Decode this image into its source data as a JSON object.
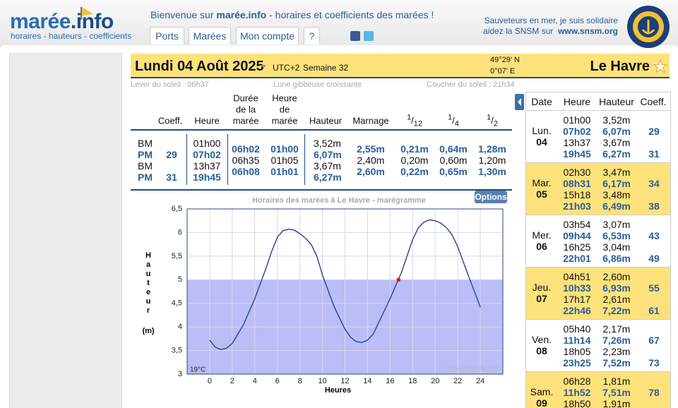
{
  "logo": {
    "brand": "marée",
    "suffix": ".info",
    "tagline": "horaires - hauteurs - coefficients"
  },
  "welcome": [
    "Bienvenue sur ",
    "marée.info",
    " - horaires et coefficients des marées !"
  ],
  "nav": [
    "Ports",
    "Marées",
    "Mon compte",
    "?"
  ],
  "snsm": {
    "line1": "Sauveteurs en mer, je suis solidaire",
    "line2": "aidez la SNSM sur",
    "link": "www.snsm.org"
  },
  "day": {
    "date": "Lundi 04 Août 2025",
    "tz": "UTC+2",
    "week": "Semaine 32",
    "lat": "49°29' N",
    "lon": "0°07' E",
    "place": "Le Havre"
  },
  "sun": {
    "rise": "Lever du soleil : 06h37",
    "moon": "Lune gibbeuse croissante",
    "set": "Coucher du soleil : 21h34"
  },
  "table": {
    "headers": [
      "Coeff.",
      "Heure",
      [
        "Durée",
        "de la",
        "marée"
      ],
      [
        "Heure",
        "de",
        "marée"
      ],
      "Hauteur",
      "Marnage",
      "1/12",
      "1/4",
      "1/2"
    ],
    "rows": [
      [
        "BM",
        null,
        "01h00",
        null,
        null,
        "3,52m",
        null,
        null,
        null,
        null
      ],
      [
        "PM",
        29,
        "07h02",
        "06h02",
        "01h00",
        "6,07m",
        "2,55m",
        "0,21m",
        "0,64m",
        "1,28m"
      ],
      [
        "BM",
        null,
        "13h37",
        "06h35",
        "01h05",
        "3,67m",
        "2,40m",
        "0,20m",
        "0,60m",
        "1,20m"
      ],
      [
        "PM",
        31,
        "19h45",
        "06h08",
        "01h01",
        "6,27m",
        "2,60m",
        "0,22m",
        "0,65m",
        "1,30m"
      ]
    ]
  },
  "chart_data": {
    "type": "line",
    "title": "Horaires des marées à Le Havre - marégramme",
    "options": "Options",
    "ylabel": "Hauteur",
    "yunit": "(m)",
    "xlabel": "Heures",
    "temperature": "19°C",
    "watermark": "http://marée.info",
    "color": "#2a3f9a",
    "x": [
      0,
      0.5,
      1,
      1.5,
      2,
      3,
      4,
      5,
      5.5,
      6,
      6.5,
      7,
      7.5,
      8,
      8.5,
      9,
      9.5,
      10,
      11,
      12,
      12.5,
      13,
      13.5,
      14,
      14.5,
      15,
      16,
      17,
      17.5,
      18,
      18.5,
      19,
      19.5,
      20,
      20.5,
      21,
      21.5,
      22,
      23,
      24
    ],
    "values": [
      3.72,
      3.57,
      3.52,
      3.55,
      3.65,
      4.05,
      4.6,
      5.25,
      5.6,
      5.9,
      6.04,
      6.07,
      6.05,
      5.98,
      5.88,
      5.75,
      5.5,
      5.1,
      4.45,
      3.95,
      3.78,
      3.69,
      3.67,
      3.72,
      3.85,
      4.1,
      4.6,
      5.15,
      5.5,
      5.85,
      6.1,
      6.22,
      6.27,
      6.25,
      6.2,
      6.1,
      5.95,
      5.7,
      5.05,
      4.42
    ],
    "marker": {
      "x": 16.75,
      "y": 5.0,
      "color": "#cc2222"
    },
    "fill": "#bbbdf6",
    "xlim": [
      -2,
      26
    ],
    "ylim": [
      3,
      6.5
    ],
    "xticks": [
      0,
      2,
      4,
      6,
      8,
      10,
      12,
      14,
      16,
      18,
      20,
      22,
      24
    ],
    "yticks": [
      3,
      {
        "value": 3.5,
        "label": "3,5"
      },
      4,
      {
        "value": 4.5,
        "label": "4,5"
      },
      5,
      {
        "value": 5.5,
        "label": "5,5"
      },
      6,
      {
        "value": 6.5,
        "label": "6,5"
      }
    ],
    "grid": true
  },
  "side": {
    "headers": [
      "Date",
      "Heure",
      "Hauteur",
      "Coeff."
    ],
    "days": [
      {
        "day": "Lun.",
        "num": "04",
        "tides": [
          [
            "01h00",
            "3,52m",
            null
          ],
          [
            "07h02",
            "6,07m",
            29
          ],
          [
            "13h37",
            "3,67m",
            null
          ],
          [
            "19h45",
            "6,27m",
            31
          ]
        ]
      },
      {
        "day": "Mar.",
        "num": "05",
        "tides": [
          [
            "02h30",
            "3,47m",
            null
          ],
          [
            "08h31",
            "6,17m",
            34
          ],
          [
            "15h18",
            "3,48m",
            null
          ],
          [
            "21h03",
            "6,49m",
            38
          ]
        ]
      },
      {
        "day": "Mer.",
        "num": "06",
        "tides": [
          [
            "03h54",
            "3,07m",
            null
          ],
          [
            "09h44",
            "6,53m",
            43
          ],
          [
            "16h25",
            "3,04m",
            null
          ],
          [
            "22h01",
            "6,86m",
            49
          ]
        ]
      },
      {
        "day": "Jeu.",
        "num": "07",
        "tides": [
          [
            "04h51",
            "2,60m",
            null
          ],
          [
            "10h33",
            "6,93m",
            55
          ],
          [
            "17h17",
            "2,61m",
            null
          ],
          [
            "22h46",
            "7,22m",
            61
          ]
        ]
      },
      {
        "day": "Ven.",
        "num": "08",
        "tides": [
          [
            "05h40",
            "2,17m",
            null
          ],
          [
            "11h14",
            "7,26m",
            67
          ],
          [
            "18h05",
            "2,23m",
            null
          ],
          [
            "23h25",
            "7,52m",
            73
          ]
        ]
      },
      {
        "day": "Sam.",
        "num": "09",
        "tides": [
          [
            "06h28",
            "1,81m",
            null
          ],
          [
            "11h52",
            "7,51m",
            78
          ],
          [
            "18h50",
            "1,91m",
            null
          ]
        ]
      }
    ]
  }
}
